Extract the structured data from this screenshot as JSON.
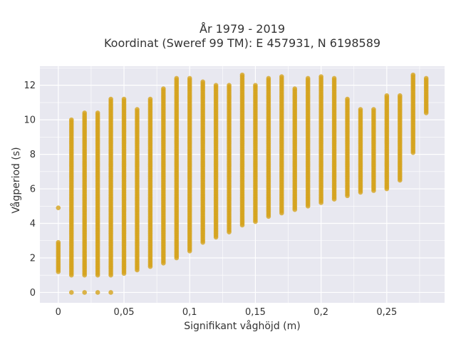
{
  "chart_data": {
    "type": "scatter",
    "title_lines": [
      "År 1979 - 2019",
      "Koordinat (Sweref 99 TM): E 457931, N 6198589"
    ],
    "xlabel": "Signifikant våghöjd (m)",
    "ylabel": "Vågperiod (s)",
    "xlim": [
      -0.014,
      0.294
    ],
    "ylim": [
      -0.6,
      13.1
    ],
    "xticks": [
      0,
      0.05,
      0.1,
      0.15,
      0.2,
      0.25
    ],
    "xtick_labels": [
      "0",
      "0,05",
      "0,1",
      "0,15",
      "0,2",
      "0,25"
    ],
    "yticks": [
      0,
      2,
      4,
      6,
      8,
      10,
      12
    ],
    "ytick_labels": [
      "0",
      "2",
      "4",
      "6",
      "8",
      "10",
      "12"
    ],
    "grid": true,
    "marker_color": "#D4A21C",
    "background_color": "#E8E8F0",
    "columns": [
      {
        "x": 0.0,
        "min": 1.2,
        "max": 2.9,
        "outliers": [
          4.9
        ]
      },
      {
        "x": 0.01,
        "min": 1.0,
        "max": 10.0,
        "outliers": [
          0.0
        ]
      },
      {
        "x": 0.02,
        "min": 1.0,
        "max": 10.4,
        "outliers": [
          0.0
        ]
      },
      {
        "x": 0.03,
        "min": 1.0,
        "max": 10.4,
        "outliers": [
          0.0
        ]
      },
      {
        "x": 0.04,
        "min": 1.0,
        "max": 11.2,
        "outliers": [
          0.0
        ]
      },
      {
        "x": 0.05,
        "min": 1.1,
        "max": 11.2,
        "outliers": []
      },
      {
        "x": 0.06,
        "min": 1.3,
        "max": 10.6,
        "outliers": []
      },
      {
        "x": 0.07,
        "min": 1.5,
        "max": 11.2,
        "outliers": []
      },
      {
        "x": 0.08,
        "min": 1.7,
        "max": 11.8,
        "outliers": []
      },
      {
        "x": 0.09,
        "min": 2.0,
        "max": 12.4,
        "outliers": []
      },
      {
        "x": 0.1,
        "min": 2.4,
        "max": 12.4,
        "outliers": []
      },
      {
        "x": 0.11,
        "min": 2.9,
        "max": 12.2,
        "outliers": []
      },
      {
        "x": 0.12,
        "min": 3.2,
        "max": 12.0,
        "outliers": []
      },
      {
        "x": 0.13,
        "min": 3.5,
        "max": 12.0,
        "outliers": []
      },
      {
        "x": 0.14,
        "min": 3.9,
        "max": 12.6,
        "outliers": []
      },
      {
        "x": 0.15,
        "min": 4.1,
        "max": 12.0,
        "outliers": []
      },
      {
        "x": 0.16,
        "min": 4.4,
        "max": 12.4,
        "outliers": []
      },
      {
        "x": 0.17,
        "min": 4.6,
        "max": 12.5,
        "outliers": []
      },
      {
        "x": 0.18,
        "min": 4.8,
        "max": 11.8,
        "outliers": []
      },
      {
        "x": 0.19,
        "min": 5.0,
        "max": 12.4,
        "outliers": []
      },
      {
        "x": 0.2,
        "min": 5.2,
        "max": 12.5,
        "outliers": []
      },
      {
        "x": 0.21,
        "min": 5.4,
        "max": 12.4,
        "outliers": []
      },
      {
        "x": 0.22,
        "min": 5.6,
        "max": 11.2,
        "outliers": []
      },
      {
        "x": 0.23,
        "min": 5.8,
        "max": 10.6,
        "outliers": []
      },
      {
        "x": 0.24,
        "min": 5.9,
        "max": 10.6,
        "outliers": []
      },
      {
        "x": 0.25,
        "min": 6.0,
        "max": 11.4,
        "outliers": []
      },
      {
        "x": 0.26,
        "min": 6.5,
        "max": 11.4,
        "outliers": []
      },
      {
        "x": 0.27,
        "min": 8.1,
        "max": 12.6,
        "outliers": []
      },
      {
        "x": 0.28,
        "min": 10.4,
        "max": 12.4,
        "outliers": []
      }
    ]
  }
}
